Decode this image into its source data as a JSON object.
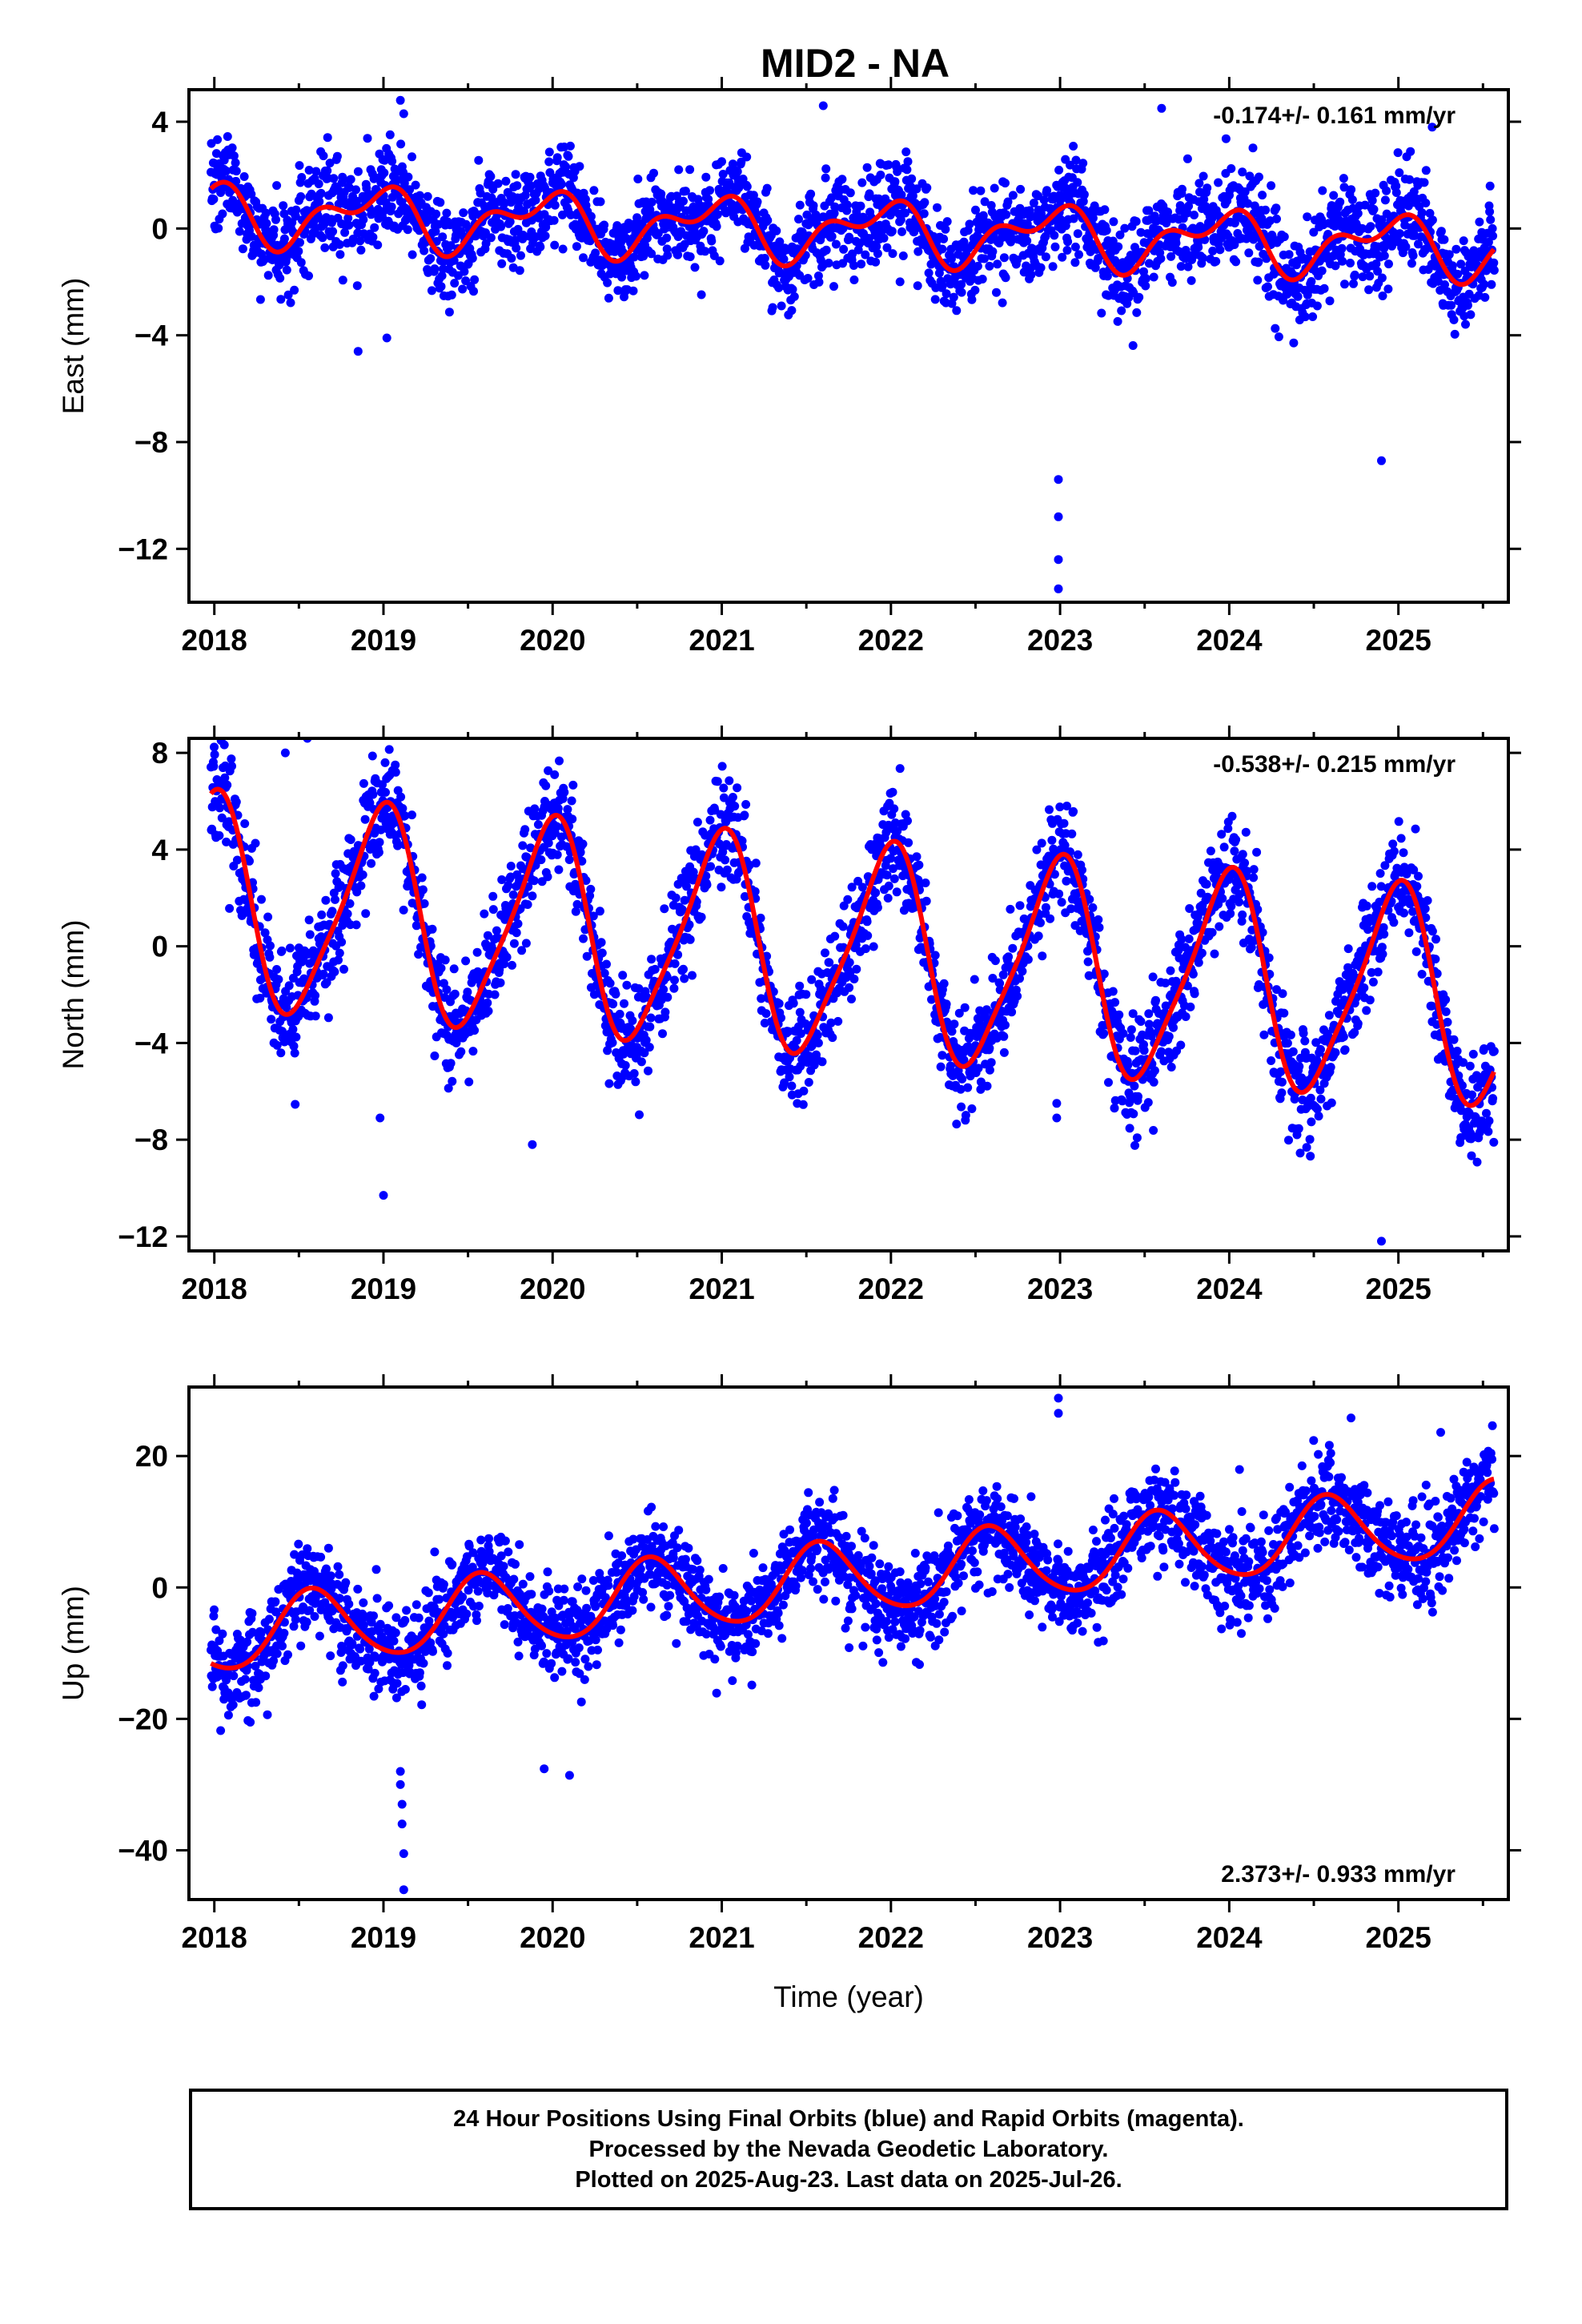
{
  "title": "MID2 - NA",
  "colors": {
    "points": "#0000ff",
    "fit": "#ff0000",
    "axis": "#000000"
  },
  "chart_data": [
    {
      "type": "scatter",
      "ylabel": "East (mm)",
      "xlabel": "",
      "rate_text": "-0.174+/- 0.161 mm/yr",
      "xlim": [
        2017.85,
        2025.65
      ],
      "ylim": [
        -14,
        5.2
      ],
      "x_ticks": [
        2018,
        2019,
        2020,
        2021,
        2022,
        2023,
        2024,
        2025
      ],
      "x_tick_labels": [
        "2018",
        "2019",
        "2020",
        "2021",
        "2022",
        "2023",
        "2024",
        "2025"
      ],
      "y_ticks": [
        4,
        0,
        -4,
        -8,
        -12
      ],
      "y_tick_labels": [
        "4",
        "0",
        "−4",
        "−8",
        "−12"
      ],
      "data_range": [
        2017.98,
        2025.57
      ],
      "model": {
        "trend": -0.174,
        "offset": 0.6,
        "annual_amp": 0.9,
        "annual_phase": 2.0,
        "semi_amp": 0.6,
        "semi_phase": 0.3,
        "noise": 0.9
      },
      "outliers": [
        {
          "x": 2018.85,
          "y": -4.6
        },
        {
          "x": 2019.02,
          "y": -4.1
        },
        {
          "x": 2019.1,
          "y": 4.8
        },
        {
          "x": 2019.12,
          "y": 4.3
        },
        {
          "x": 2022.99,
          "y": -9.4
        },
        {
          "x": 2022.99,
          "y": -10.8
        },
        {
          "x": 2022.99,
          "y": -12.4
        },
        {
          "x": 2022.99,
          "y": -13.5
        },
        {
          "x": 2024.9,
          "y": -8.7
        },
        {
          "x": 2021.6,
          "y": 4.6
        },
        {
          "x": 2023.6,
          "y": 4.5
        },
        {
          "x": 2025.2,
          "y": 3.8
        }
      ]
    },
    {
      "type": "scatter",
      "ylabel": "North (mm)",
      "xlabel": "",
      "rate_text": "-0.538+/- 0.215 mm/yr",
      "xlim": [
        2017.85,
        2025.65
      ],
      "ylim": [
        -12.6,
        8.6
      ],
      "x_ticks": [
        2018,
        2019,
        2020,
        2021,
        2022,
        2023,
        2024,
        2025
      ],
      "x_tick_labels": [
        "2018",
        "2019",
        "2020",
        "2021",
        "2022",
        "2023",
        "2024",
        "2025"
      ],
      "y_ticks": [
        8,
        4,
        0,
        -4,
        -8,
        -12
      ],
      "y_tick_labels": [
        "8",
        "4",
        "0",
        "−4",
        "−8",
        "−12"
      ],
      "data_range": [
        2017.98,
        2025.57
      ],
      "model": {
        "trend": -0.538,
        "offset": 1.8,
        "annual_amp": 4.3,
        "annual_phase": 1.7,
        "semi_amp": 0.8,
        "semi_phase": 0.5,
        "noise": 1.1
      },
      "outliers": [
        {
          "x": 2019.0,
          "y": -10.3
        },
        {
          "x": 2018.98,
          "y": -7.1
        },
        {
          "x": 2019.88,
          "y": -8.2
        },
        {
          "x": 2022.98,
          "y": -6.5
        },
        {
          "x": 2022.98,
          "y": -7.1
        },
        {
          "x": 2024.9,
          "y": -12.2
        },
        {
          "x": 2018.55,
          "y": 8.6
        },
        {
          "x": 2018.42,
          "y": 8.0
        }
      ]
    },
    {
      "type": "scatter",
      "ylabel": "Up (mm)",
      "xlabel": "Time (year)",
      "rate_text": "2.373+/- 0.933 mm/yr",
      "xlim": [
        2017.85,
        2025.65
      ],
      "ylim": [
        -47.5,
        30.5
      ],
      "x_ticks": [
        2018,
        2019,
        2020,
        2021,
        2022,
        2023,
        2024,
        2025
      ],
      "x_tick_labels": [
        "2018",
        "2019",
        "2020",
        "2021",
        "2022",
        "2023",
        "2024",
        "2025"
      ],
      "y_ticks": [
        20,
        0,
        -20,
        -40
      ],
      "y_tick_labels": [
        "20",
        "0",
        "−20",
        "−40"
      ],
      "data_range": [
        2017.98,
        2025.57
      ],
      "model": {
        "trend": 2.373,
        "offset": -7.5,
        "annual_amp": 5.5,
        "annual_phase": 4.2,
        "semi_amp": 0.6,
        "semi_phase": 1.0,
        "noise": 3.6
      },
      "outliers": [
        {
          "x": 2019.12,
          "y": -46.0
        },
        {
          "x": 2019.12,
          "y": -40.5
        },
        {
          "x": 2019.11,
          "y": -36.0
        },
        {
          "x": 2019.11,
          "y": -33.0
        },
        {
          "x": 2019.1,
          "y": -30.0
        },
        {
          "x": 2019.1,
          "y": -28.0
        },
        {
          "x": 2022.99,
          "y": 28.8
        },
        {
          "x": 2022.99,
          "y": 26.5
        },
        {
          "x": 2024.72,
          "y": 25.8
        },
        {
          "x": 2025.25,
          "y": 23.6
        },
        {
          "x": 2019.95,
          "y": -27.6
        },
        {
          "x": 2020.1,
          "y": -28.6
        }
      ]
    }
  ],
  "footer": {
    "line1": "24 Hour Positions Using Final Orbits (blue) and Rapid Orbits (magenta).",
    "line2": "Processed by the Nevada Geodetic Laboratory.",
    "line3": "Plotted on 2025-Aug-23. Last data on 2025-Jul-26."
  }
}
